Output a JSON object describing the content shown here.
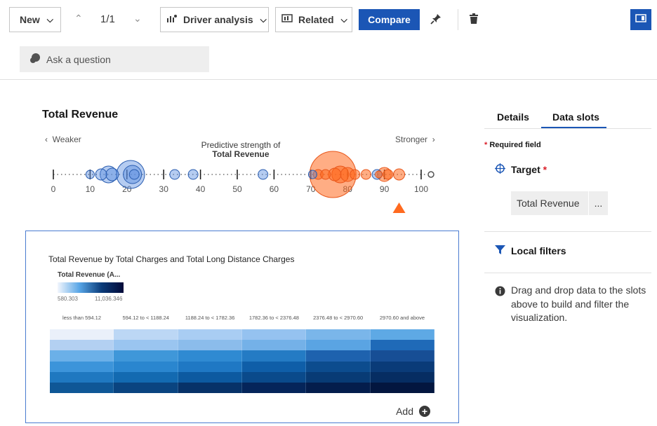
{
  "toolbar": {
    "new_label": "New",
    "page_count": "1/1",
    "driver_label": "Driver analysis",
    "related_label": "Related",
    "compare_label": "Compare"
  },
  "ask": {
    "placeholder": "Ask a question"
  },
  "driver": {
    "title": "Total Revenue",
    "weaker": "Weaker",
    "stronger": "Stronger",
    "caption_line1": "Predictive strength of",
    "caption_line2": "Total Revenue",
    "axis_ticks": [
      "0",
      "10",
      "20",
      "30",
      "40",
      "50",
      "60",
      "70",
      "80",
      "90",
      "100"
    ],
    "bubbles": [
      {
        "v": 10,
        "r": 6,
        "c": "blue"
      },
      {
        "v": 13,
        "r": 8,
        "c": "blue"
      },
      {
        "v": 15,
        "r": 12,
        "c": "blue"
      },
      {
        "v": 16,
        "r": 9,
        "c": "blue"
      },
      {
        "v": 21,
        "r": 20,
        "c": "blue"
      },
      {
        "v": 21.5,
        "r": 13,
        "c": "blue"
      },
      {
        "v": 22,
        "r": 7,
        "c": "blue"
      },
      {
        "v": 33,
        "r": 7,
        "c": "blue"
      },
      {
        "v": 38,
        "r": 7,
        "c": "blue"
      },
      {
        "v": 57,
        "r": 7,
        "c": "blue"
      },
      {
        "v": 70.5,
        "r": 6,
        "c": "blue"
      },
      {
        "v": 76,
        "r": 33,
        "c": "orange"
      },
      {
        "v": 72,
        "r": 7,
        "c": "orange"
      },
      {
        "v": 74,
        "r": 7,
        "c": "orange"
      },
      {
        "v": 76.5,
        "r": 9,
        "c": "orange"
      },
      {
        "v": 78,
        "r": 12,
        "c": "orange"
      },
      {
        "v": 80,
        "r": 10,
        "c": "orange"
      },
      {
        "v": 82,
        "r": 7,
        "c": "orange"
      },
      {
        "v": 85,
        "r": 7,
        "c": "orange"
      },
      {
        "v": 88,
        "r": 7,
        "c": "blue"
      },
      {
        "v": 88.5,
        "r": 5,
        "c": "orange"
      },
      {
        "v": 90,
        "r": 10,
        "c": "orange"
      },
      {
        "v": 91,
        "r": 7,
        "c": "orange"
      },
      {
        "v": 94,
        "r": 8,
        "c": "orange"
      }
    ],
    "target_marker": 94
  },
  "viz": {
    "title": "Total Revenue by Total Charges and Total Long Distance Charges",
    "legend_title": "Total Revenue (A...",
    "legend_min": "580.303",
    "legend_max": "11,036.346",
    "columns": [
      "less than 594.12",
      "594.12 to < 1188.24",
      "1188.24 to < 1782.36",
      "1782.36 to < 2376.48",
      "2376.48 to < 2970.60",
      "2970.60 and above"
    ],
    "cells": [
      [
        "#eaf0fa",
        "#bcd7f5",
        "#a9cdf3",
        "#95c2f0",
        "#7ab6ea",
        "#5ea9e5"
      ],
      [
        "#b3d0f2",
        "#9ac5f0",
        "#8bbceb",
        "#74b1e8",
        "#5aa4e3",
        "#1f6ab8"
      ],
      [
        "#6bb0e8",
        "#3f97d9",
        "#2f8ad2",
        "#247bc4",
        "#1e62ae",
        "#174e95"
      ],
      [
        "#3c94da",
        "#2a86cf",
        "#1f78c4",
        "#0f5ea8",
        "#0c4c8e",
        "#0a3b78"
      ],
      [
        "#1f78c0",
        "#136ab1",
        "#0d5aa0",
        "#0a4a8b",
        "#083b75",
        "#062d62"
      ],
      [
        "#0f5796",
        "#0a4480",
        "#073268",
        "#05255a",
        "#041d4c",
        "#03163f"
      ]
    ],
    "add_label": "Add"
  },
  "panel": {
    "tab_details": "Details",
    "tab_dataslots": "Data slots",
    "required": "Required field",
    "target_label": "Target",
    "target_value": "Total Revenue",
    "more": "...",
    "local_filters": "Local filters",
    "info": "Drag and drop data to the slots above to build and filter the visualization."
  },
  "colors": {
    "accent": "#1b56b5",
    "blue_bubble": "#5b8fe0",
    "orange_bubble": "#ff6a1f"
  }
}
